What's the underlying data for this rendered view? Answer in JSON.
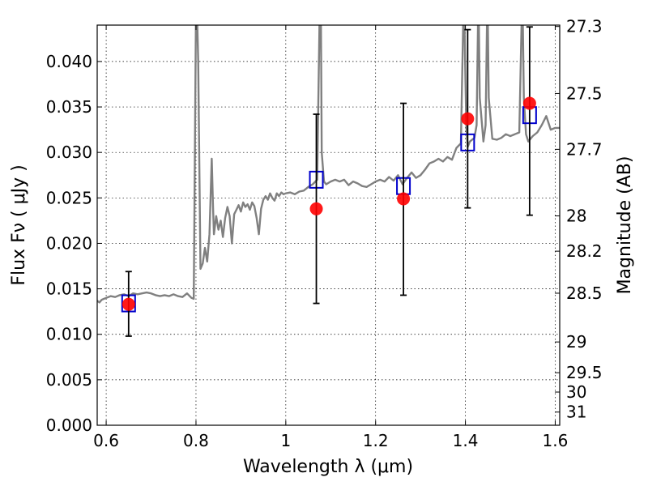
{
  "chart_data": {
    "type": "scatter",
    "xlabel": "Wavelength  λ (μm)",
    "ylabel_left": "Flux  Fν  ( μJy )",
    "ylabel_right": "Magnitude (AB)",
    "xlim": [
      0.58,
      1.61
    ],
    "ylim": [
      0.0,
      0.044
    ],
    "grid": true,
    "x_ticks": [
      {
        "value": 0.6,
        "label": "0.6"
      },
      {
        "value": 0.8,
        "label": "0.8"
      },
      {
        "value": 1.0,
        "label": "1"
      },
      {
        "value": 1.2,
        "label": "1.2"
      },
      {
        "value": 1.4,
        "label": "1.4"
      },
      {
        "value": 1.6,
        "label": "1.6"
      }
    ],
    "y_ticks": [
      {
        "value": 0.0,
        "label": "0.000"
      },
      {
        "value": 0.005,
        "label": "0.005"
      },
      {
        "value": 0.01,
        "label": "0.010"
      },
      {
        "value": 0.015,
        "label": "0.015"
      },
      {
        "value": 0.02,
        "label": "0.020"
      },
      {
        "value": 0.025,
        "label": "0.025"
      },
      {
        "value": 0.03,
        "label": "0.030"
      },
      {
        "value": 0.035,
        "label": "0.035"
      },
      {
        "value": 0.04,
        "label": "0.040"
      }
    ],
    "right_ticks": [
      {
        "label": "27.3",
        "flux": 0.04385
      },
      {
        "label": "27.5",
        "flux": 0.03648
      },
      {
        "label": "27.7",
        "flux": 0.03034
      },
      {
        "label": "28",
        "flux": 0.02302
      },
      {
        "label": "28.2",
        "flux": 0.01914
      },
      {
        "label": "28.5",
        "flux": 0.01452
      },
      {
        "label": "29",
        "flux": 0.00916
      },
      {
        "label": "29.5",
        "flux": 0.00578
      },
      {
        "label": "30",
        "flux": 0.00365
      },
      {
        "label": "31",
        "flux": 0.00145
      }
    ],
    "series": [
      {
        "kind": "line",
        "color": "#808080",
        "x": [
          0.58,
          0.585,
          0.59,
          0.6,
          0.61,
          0.62,
          0.63,
          0.64,
          0.65,
          0.66,
          0.67,
          0.68,
          0.69,
          0.7,
          0.71,
          0.72,
          0.73,
          0.74,
          0.75,
          0.76,
          0.77,
          0.78,
          0.79,
          0.795,
          0.8,
          0.802,
          0.805,
          0.81,
          0.815,
          0.82,
          0.825,
          0.83,
          0.835,
          0.838,
          0.84,
          0.845,
          0.85,
          0.855,
          0.86,
          0.865,
          0.87,
          0.875,
          0.88,
          0.885,
          0.89,
          0.895,
          0.9,
          0.905,
          0.91,
          0.915,
          0.92,
          0.925,
          0.93,
          0.935,
          0.94,
          0.945,
          0.95,
          0.955,
          0.96,
          0.965,
          0.97,
          0.975,
          0.98,
          0.985,
          0.99,
          0.995,
          1.0,
          1.01,
          1.02,
          1.03,
          1.04,
          1.05,
          1.06,
          1.07,
          1.075,
          1.078,
          1.08,
          1.085,
          1.09,
          1.1,
          1.11,
          1.12,
          1.13,
          1.14,
          1.15,
          1.16,
          1.17,
          1.18,
          1.19,
          1.2,
          1.21,
          1.22,
          1.23,
          1.24,
          1.25,
          1.26,
          1.27,
          1.28,
          1.29,
          1.3,
          1.31,
          1.32,
          1.33,
          1.34,
          1.35,
          1.36,
          1.37,
          1.38,
          1.39,
          1.395,
          1.398,
          1.4,
          1.402,
          1.405,
          1.41,
          1.42,
          1.425,
          1.428,
          1.43,
          1.432,
          1.44,
          1.445,
          1.448,
          1.45,
          1.452,
          1.46,
          1.47,
          1.48,
          1.49,
          1.5,
          1.51,
          1.52,
          1.525,
          1.528,
          1.53,
          1.535,
          1.54,
          1.55,
          1.56,
          1.57,
          1.58,
          1.59,
          1.6,
          1.61
        ],
        "y": [
          0.0137,
          0.0135,
          0.0138,
          0.014,
          0.0142,
          0.0141,
          0.0143,
          0.0144,
          0.0142,
          0.0145,
          0.0144,
          0.0145,
          0.0146,
          0.0145,
          0.0143,
          0.0142,
          0.0143,
          0.0142,
          0.0144,
          0.0142,
          0.0141,
          0.0145,
          0.014,
          0.0139,
          0.046,
          0.046,
          0.04,
          0.0172,
          0.0178,
          0.0195,
          0.018,
          0.021,
          0.0293,
          0.024,
          0.021,
          0.023,
          0.0215,
          0.0225,
          0.0207,
          0.0228,
          0.024,
          0.023,
          0.02,
          0.0232,
          0.0237,
          0.0242,
          0.0235,
          0.0245,
          0.024,
          0.0243,
          0.0237,
          0.0245,
          0.0241,
          0.0228,
          0.021,
          0.0238,
          0.0248,
          0.0252,
          0.0248,
          0.0255,
          0.025,
          0.0247,
          0.0255,
          0.0252,
          0.0256,
          0.0254,
          0.0255,
          0.0256,
          0.0254,
          0.0257,
          0.0258,
          0.0262,
          0.0265,
          0.027,
          0.044,
          0.046,
          0.03,
          0.0268,
          0.0265,
          0.0268,
          0.027,
          0.0268,
          0.027,
          0.0264,
          0.0268,
          0.0266,
          0.0263,
          0.0262,
          0.0265,
          0.0268,
          0.027,
          0.0268,
          0.0273,
          0.0269,
          0.0275,
          0.0265,
          0.0272,
          0.0278,
          0.0272,
          0.0275,
          0.0281,
          0.0288,
          0.029,
          0.0293,
          0.029,
          0.0295,
          0.0292,
          0.0305,
          0.031,
          0.044,
          0.044,
          0.038,
          0.033,
          0.0306,
          0.0312,
          0.0316,
          0.033,
          0.044,
          0.044,
          0.036,
          0.0312,
          0.033,
          0.044,
          0.044,
          0.036,
          0.0315,
          0.0314,
          0.0316,
          0.032,
          0.0318,
          0.032,
          0.0322,
          0.044,
          0.044,
          0.036,
          0.032,
          0.0312,
          0.0318,
          0.0322,
          0.033,
          0.034,
          0.0325,
          0.0327,
          0.0327
        ]
      },
      {
        "kind": "errorbar",
        "marker": "circle",
        "color": "#ff0000",
        "points": [
          {
            "x": 0.65,
            "y": 0.0133,
            "ylo": 0.0098,
            "yhi": 0.0169
          },
          {
            "x": 1.068,
            "y": 0.0238,
            "ylo": 0.0134,
            "yhi": 0.0342
          },
          {
            "x": 1.262,
            "y": 0.0249,
            "ylo": 0.0143,
            "yhi": 0.0354
          },
          {
            "x": 1.405,
            "y": 0.0337,
            "ylo": 0.0239,
            "yhi": 0.0435
          },
          {
            "x": 1.543,
            "y": 0.0354,
            "ylo": 0.0231,
            "yhi": 0.0438
          }
        ]
      },
      {
        "kind": "scatter",
        "marker": "open-square",
        "color": "#0000cc",
        "points": [
          {
            "x": 0.65,
            "y": 0.0134
          },
          {
            "x": 1.068,
            "y": 0.027
          },
          {
            "x": 1.262,
            "y": 0.0263
          },
          {
            "x": 1.405,
            "y": 0.0311
          },
          {
            "x": 1.543,
            "y": 0.0341
          }
        ]
      }
    ]
  }
}
